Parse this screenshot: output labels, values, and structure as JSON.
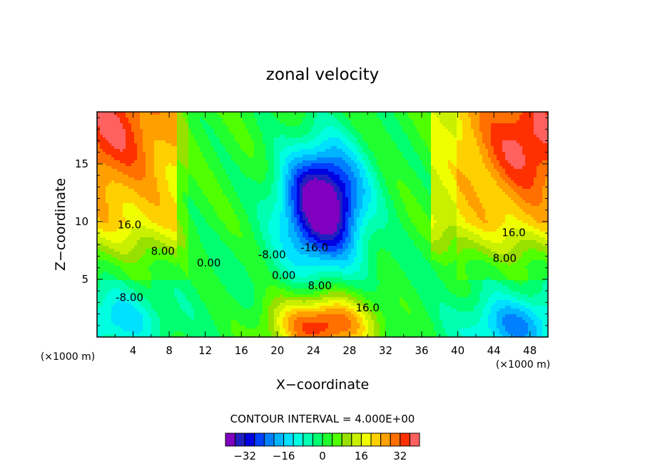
{
  "chart_data": {
    "type": "heatmap",
    "title": "zonal velocity",
    "xlabel": "X−coordinate",
    "ylabel": "Z−coordinate",
    "x_unit_left": "(×1000 m)",
    "x_unit_right": "(×1000 m)",
    "xlim": [
      0,
      50
    ],
    "ylim": [
      0,
      19.5
    ],
    "x_ticks": [
      4,
      8,
      12,
      16,
      20,
      24,
      28,
      32,
      36,
      40,
      44,
      48
    ],
    "y_ticks": [
      5,
      10,
      15
    ],
    "contour_interval_text": "CONTOUR INTERVAL = 4.000E+00",
    "contour_interval": 4,
    "contour_labels": [
      {
        "text": "16.0",
        "x": 3.6,
        "y": 9.7
      },
      {
        "text": "8.00",
        "x": 7.3,
        "y": 7.4
      },
      {
        "text": "0.00",
        "x": 12.4,
        "y": 6.4
      },
      {
        "text": "-8.00",
        "x": 3.6,
        "y": 3.4
      },
      {
        "text": "-8.00",
        "x": 19.4,
        "y": 7.1
      },
      {
        "text": "-16.0",
        "x": 24.1,
        "y": 7.7
      },
      {
        "text": "0.00",
        "x": 20.7,
        "y": 5.3
      },
      {
        "text": "8.00",
        "x": 24.7,
        "y": 4.4
      },
      {
        "text": "16.0",
        "x": 30.0,
        "y": 2.5
      },
      {
        "text": "16.0",
        "x": 46.2,
        "y": 9.0
      },
      {
        "text": "8.00",
        "x": 45.2,
        "y": 6.8
      }
    ],
    "colorbar": {
      "levels": [
        -40,
        -36,
        -32,
        -28,
        -24,
        -20,
        -16,
        -12,
        -8,
        -4,
        0,
        4,
        8,
        12,
        16,
        20,
        24,
        28,
        32,
        36,
        40
      ],
      "colors": [
        "#8000c0",
        "#2020c0",
        "#0000e0",
        "#0040ff",
        "#0080ff",
        "#00b4ff",
        "#00e0ff",
        "#00ffe0",
        "#00ffb0",
        "#00ff70",
        "#20ff30",
        "#50ff00",
        "#98e000",
        "#c8f000",
        "#f0ff00",
        "#ffd000",
        "#ffa000",
        "#ff7000",
        "#ff3000",
        "#ff6060"
      ],
      "tick_labels": [
        "−32",
        "−16",
        "0",
        "16",
        "32"
      ],
      "tick_values": [
        -32,
        -16,
        0,
        16,
        32
      ]
    },
    "field_features": [
      {
        "kind": "max",
        "x": 1.5,
        "y": 18.0,
        "value": 30
      },
      {
        "kind": "max",
        "x": 48.0,
        "y": 17.0,
        "value": 32
      },
      {
        "kind": "min",
        "x": 25.0,
        "y": 11.5,
        "value": -34
      },
      {
        "kind": "max",
        "x": 25.0,
        "y": 1.0,
        "value": 36
      },
      {
        "kind": "min",
        "x": 46.5,
        "y": 1.0,
        "value": -20
      },
      {
        "kind": "min",
        "x": 2.0,
        "y": 1.5,
        "value": -14
      }
    ]
  }
}
